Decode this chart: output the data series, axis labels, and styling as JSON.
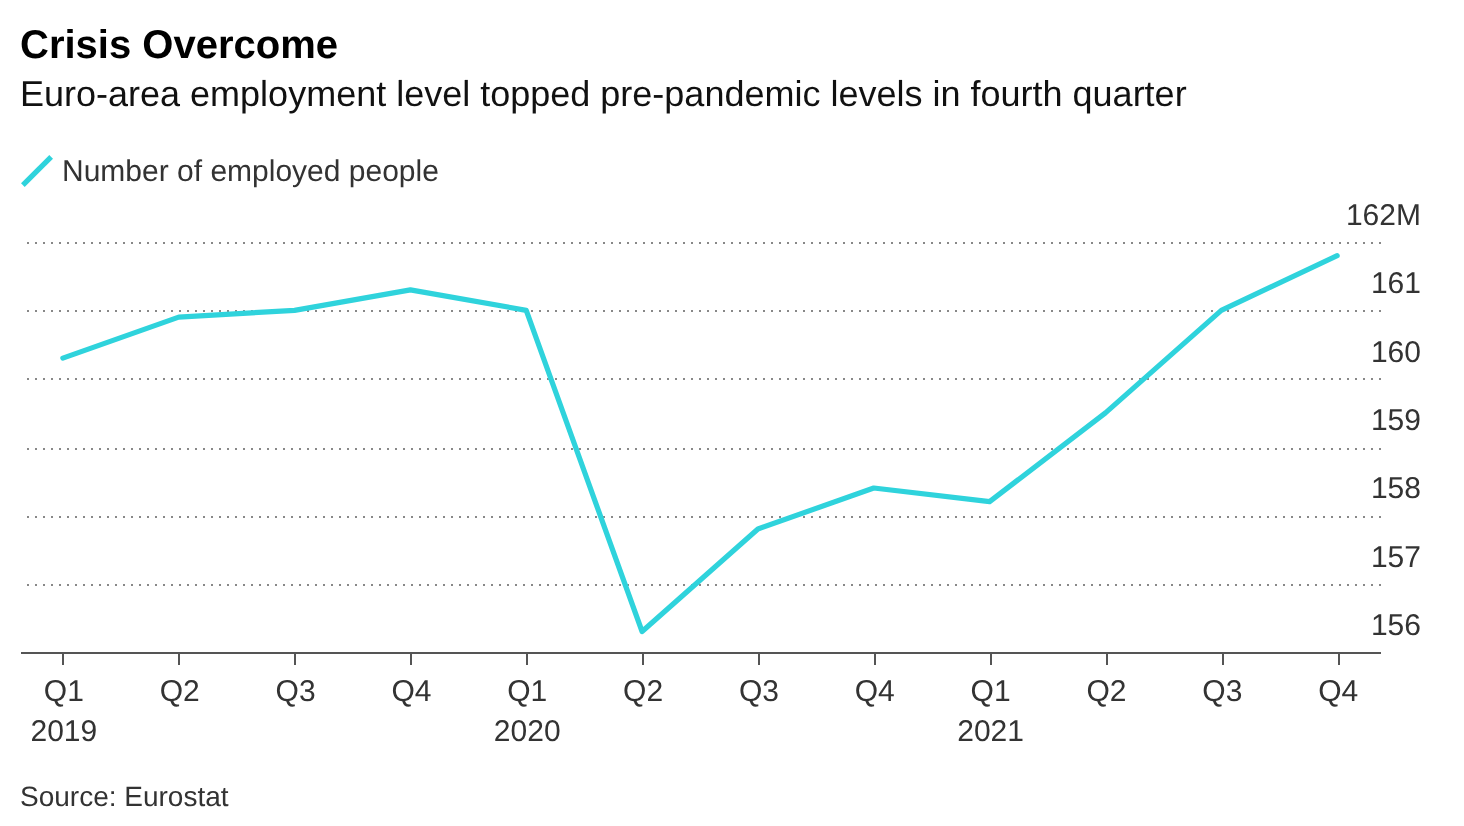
{
  "chart_data": {
    "type": "line",
    "title": "Crisis Overcome",
    "subtitle": "Euro-area employment level topped pre-pandemic levels in fourth quarter",
    "categories": [
      "Q1\n2019",
      "Q2",
      "Q3",
      "Q4",
      "Q1\n2020",
      "Q2",
      "Q3",
      "Q4",
      "Q1\n2021",
      "Q2",
      "Q3",
      "Q4"
    ],
    "series": [
      {
        "name": "Number of employed people",
        "color": "#2fd3dc",
        "values": [
          160.3,
          160.9,
          161.0,
          161.3,
          161.0,
          156.3,
          157.8,
          158.4,
          158.2,
          159.5,
          161.0,
          161.8
        ]
      }
    ],
    "ylim": [
      156,
      162
    ],
    "yticks": [
      156,
      157,
      158,
      159,
      160,
      161,
      {
        "value": 162,
        "label": "162M"
      }
    ],
    "grid": true,
    "legend": "top left",
    "annotations": [
      "Source: Eurostat"
    ]
  }
}
